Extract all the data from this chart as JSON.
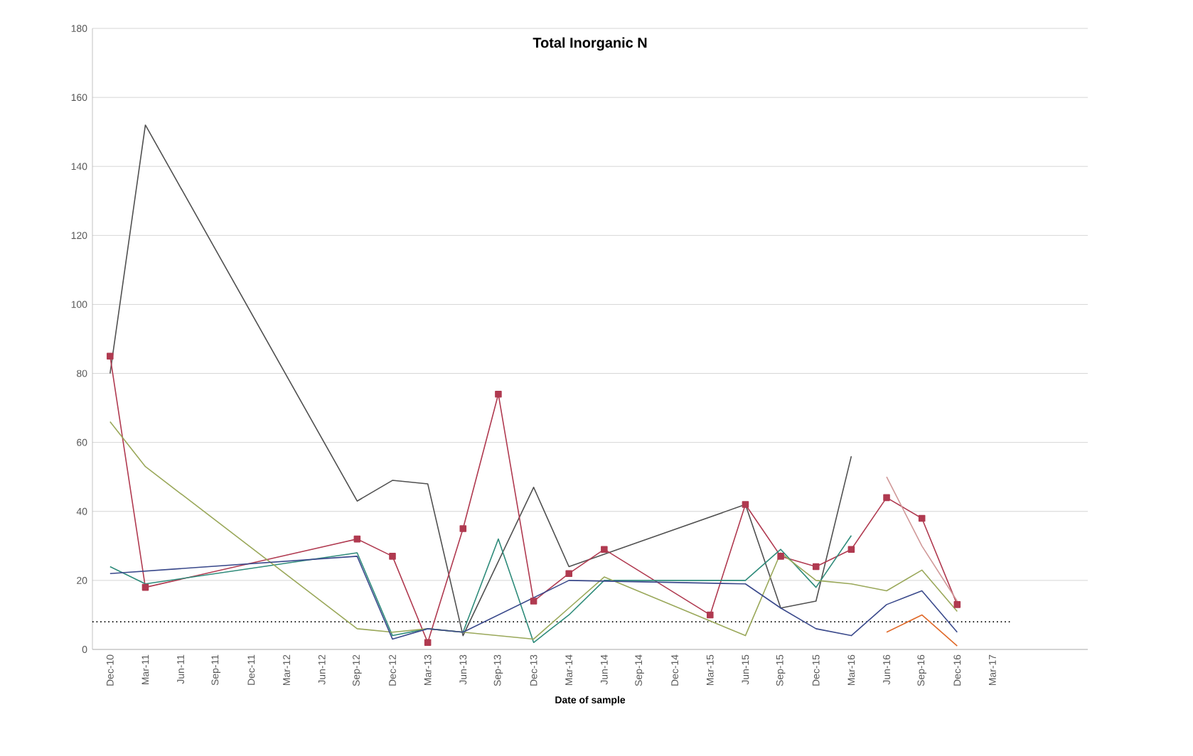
{
  "chart_data": {
    "type": "line",
    "title": "Total Inorganic N",
    "xlabel": "Date of sample",
    "categories": [
      "Dec-10",
      "Mar-11",
      "Jun-11",
      "Sep-11",
      "Dec-11",
      "Mar-12",
      "Jun-12",
      "Sep-12",
      "Dec-12",
      "Mar-13",
      "Jun-13",
      "Sep-13",
      "Dec-13",
      "Mar-14",
      "Jun-14",
      "Sep-14",
      "Dec-14",
      "Mar-15",
      "Jun-15",
      "Sep-15",
      "Dec-15",
      "Mar-16",
      "Jun-16",
      "Sep-16",
      "Dec-16",
      "Mar-17"
    ],
    "series": [
      {
        "color": "#505050",
        "marker": "none",
        "values": [
          80,
          152,
          null,
          null,
          null,
          null,
          null,
          43,
          49,
          48,
          4,
          null,
          47,
          24,
          null,
          null,
          null,
          null,
          42,
          12,
          14,
          56,
          null,
          null,
          null,
          null
        ]
      },
      {
        "color": "#b03a50",
        "marker": "square",
        "values": [
          85,
          18,
          null,
          null,
          null,
          null,
          null,
          32,
          27,
          2,
          35,
          74,
          14,
          22,
          29,
          null,
          null,
          10,
          42,
          27,
          24,
          29,
          44,
          38,
          13,
          null
        ]
      },
      {
        "color": "#2e8b7a",
        "marker": "none",
        "values": [
          24,
          19,
          null,
          null,
          null,
          null,
          null,
          28,
          4,
          6,
          5,
          32,
          2,
          10,
          20,
          null,
          null,
          null,
          20,
          29,
          18,
          33,
          null,
          null,
          null,
          null
        ]
      },
      {
        "color": "#9aa85a",
        "marker": "none",
        "values": [
          66,
          53,
          null,
          null,
          null,
          null,
          null,
          6,
          5,
          6,
          5,
          null,
          3,
          12,
          21,
          null,
          null,
          null,
          4,
          28,
          20,
          19,
          17,
          23,
          11,
          null
        ]
      },
      {
        "color": "#3b4a8c",
        "marker": "none",
        "values": [
          22,
          null,
          null,
          null,
          null,
          null,
          null,
          27,
          3,
          6,
          5,
          null,
          null,
          20,
          null,
          null,
          null,
          null,
          19,
          12,
          6,
          4,
          13,
          17,
          5,
          null
        ]
      },
      {
        "color": "#d09898",
        "marker": "none",
        "values": [
          null,
          null,
          null,
          null,
          null,
          null,
          null,
          null,
          null,
          null,
          null,
          null,
          null,
          null,
          null,
          null,
          null,
          null,
          null,
          null,
          null,
          null,
          50,
          30,
          14,
          null
        ]
      },
      {
        "color": "#e06a2a",
        "marker": "none",
        "values": [
          null,
          null,
          null,
          null,
          null,
          null,
          null,
          null,
          null,
          null,
          null,
          null,
          null,
          null,
          null,
          null,
          null,
          null,
          null,
          null,
          null,
          null,
          5,
          10,
          1,
          null
        ]
      }
    ],
    "ref_lines": [
      {
        "axis": "y",
        "value": 8,
        "color": "#000000",
        "line_style": "dotted"
      }
    ],
    "ylim": [
      0,
      180
    ],
    "yticks": [
      0,
      20,
      40,
      60,
      80,
      100,
      120,
      140,
      160,
      180
    ],
    "grid": "y"
  }
}
